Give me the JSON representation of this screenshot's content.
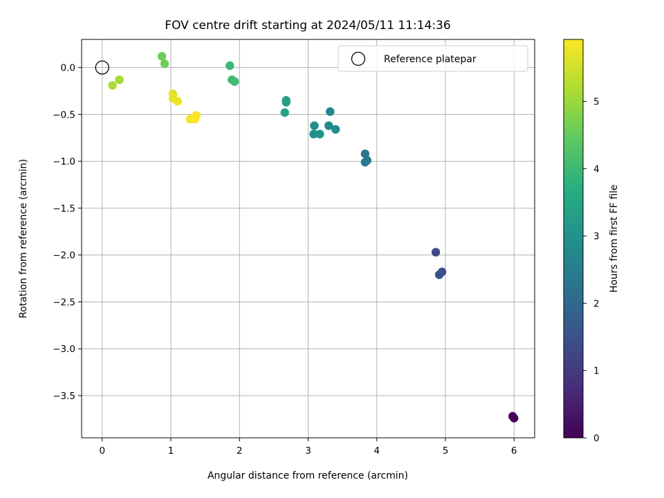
{
  "chart_data": {
    "type": "scatter",
    "title": "FOV centre drift starting at 2024/05/11 11:14:36",
    "xlabel": "Angular distance from reference (arcmin)",
    "ylabel": "Rotation from reference (arcmin)",
    "xlim": [
      -0.3,
      6.3
    ],
    "ylim": [
      -3.95,
      0.3
    ],
    "xticks": [
      0,
      1,
      2,
      3,
      4,
      5,
      6
    ],
    "yticks": [
      0.0,
      -0.5,
      -1.0,
      -1.5,
      -2.0,
      -2.5,
      -3.0,
      -3.5
    ],
    "xtick_labels": [
      "0",
      "1",
      "2",
      "3",
      "4",
      "5",
      "6"
    ],
    "ytick_labels": [
      "0.0",
      "−0.5",
      "−1.0",
      "−1.5",
      "−2.0",
      "−2.5",
      "−3.0",
      "−3.5"
    ],
    "grid": true,
    "legend": {
      "placement": "top-right",
      "label": "Reference platepar"
    },
    "reference_point": {
      "x": 0,
      "y": 0
    },
    "colorbar": {
      "label": "Hours from first FF file",
      "range": [
        0,
        5.92
      ],
      "ticks": [
        0,
        1,
        2,
        3,
        4,
        5
      ],
      "tick_labels": [
        "0",
        "1",
        "2",
        "3",
        "4",
        "5"
      ],
      "colormap": "viridis"
    },
    "points": [
      {
        "x": 5.98,
        "y": -3.72,
        "c": 0.0
      },
      {
        "x": 6.0,
        "y": -3.74,
        "c": 0.05
      },
      {
        "x": 4.86,
        "y": -1.97,
        "c": 1.3
      },
      {
        "x": 4.95,
        "y": -2.18,
        "c": 1.4
      },
      {
        "x": 4.91,
        "y": -2.21,
        "c": 1.45
      },
      {
        "x": 3.83,
        "y": -0.92,
        "c": 2.3
      },
      {
        "x": 3.86,
        "y": -0.99,
        "c": 2.35
      },
      {
        "x": 3.83,
        "y": -1.01,
        "c": 2.4
      },
      {
        "x": 3.32,
        "y": -0.47,
        "c": 2.75
      },
      {
        "x": 3.3,
        "y": -0.62,
        "c": 2.8
      },
      {
        "x": 3.4,
        "y": -0.66,
        "c": 2.85
      },
      {
        "x": 3.09,
        "y": -0.62,
        "c": 2.9
      },
      {
        "x": 3.08,
        "y": -0.71,
        "c": 2.95
      },
      {
        "x": 3.17,
        "y": -0.71,
        "c": 3.0
      },
      {
        "x": 2.68,
        "y": -0.35,
        "c": 3.3
      },
      {
        "x": 2.68,
        "y": -0.37,
        "c": 3.35
      },
      {
        "x": 2.66,
        "y": -0.48,
        "c": 3.4
      },
      {
        "x": 1.86,
        "y": 0.02,
        "c": 3.95
      },
      {
        "x": 1.89,
        "y": -0.13,
        "c": 4.0
      },
      {
        "x": 1.93,
        "y": -0.15,
        "c": 4.05
      },
      {
        "x": 0.87,
        "y": 0.12,
        "c": 4.55
      },
      {
        "x": 0.91,
        "y": 0.04,
        "c": 4.6
      },
      {
        "x": 0.25,
        "y": -0.13,
        "c": 5.1
      },
      {
        "x": 0.15,
        "y": -0.19,
        "c": 5.15
      },
      {
        "x": 1.03,
        "y": -0.28,
        "c": 5.65
      },
      {
        "x": 1.03,
        "y": -0.33,
        "c": 5.7
      },
      {
        "x": 1.1,
        "y": -0.36,
        "c": 5.75
      },
      {
        "x": 1.28,
        "y": -0.55,
        "c": 5.8
      },
      {
        "x": 1.37,
        "y": -0.51,
        "c": 5.85
      },
      {
        "x": 1.35,
        "y": -0.55,
        "c": 5.9
      }
    ]
  }
}
